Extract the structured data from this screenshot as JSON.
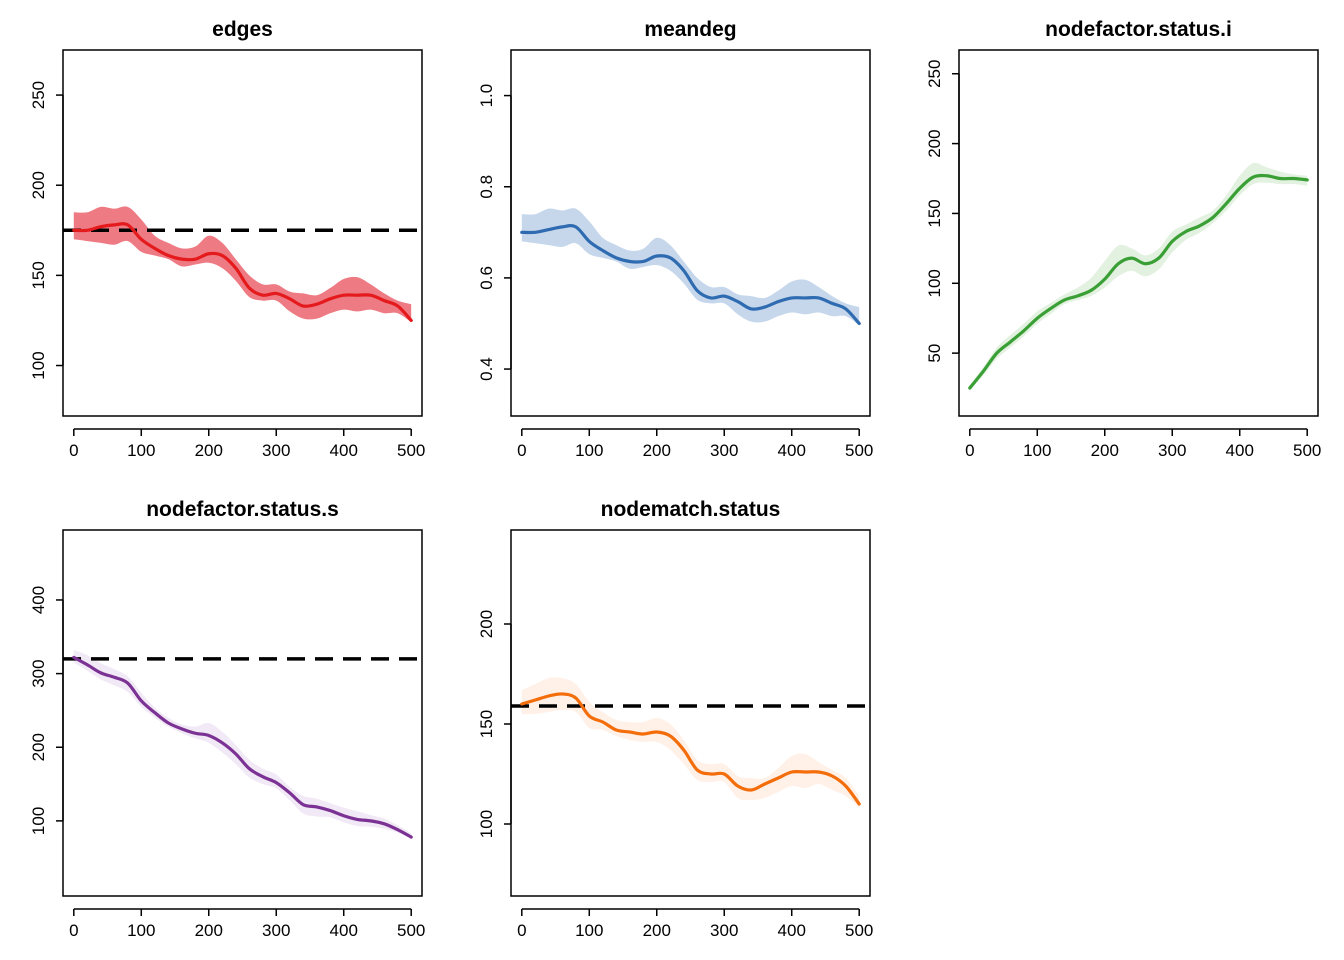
{
  "chart_data": [
    {
      "type": "line",
      "title": "edges",
      "xlabel": "",
      "ylabel": "",
      "xlim": [
        -16,
        516
      ],
      "ylim": [
        72,
        275
      ],
      "xticks": [
        0,
        100,
        200,
        300,
        400,
        500
      ],
      "yticks": [
        100,
        150,
        200,
        250
      ],
      "target": 175,
      "color": "#E41A1C",
      "band_color": "#EE7A83",
      "band_opacity": 1.0,
      "series": [
        {
          "x": [
            0,
            20,
            40,
            60,
            80,
            100,
            120,
            140,
            160,
            180,
            200,
            220,
            240,
            260,
            280,
            300,
            320,
            340,
            360,
            380,
            400,
            420,
            440,
            460,
            480,
            500
          ],
          "y": [
            175,
            175,
            177,
            178,
            178,
            170,
            165,
            161,
            159,
            159,
            162,
            161,
            154,
            143,
            139,
            140,
            137,
            133,
            134,
            137,
            139,
            139,
            139,
            136,
            133,
            125
          ],
          "lower": [
            170,
            169,
            168,
            167,
            169,
            163,
            161,
            159,
            155,
            156,
            157,
            154,
            147,
            138,
            136,
            136,
            130,
            126,
            126,
            129,
            131,
            130,
            131,
            129,
            129,
            124
          ],
          "upper": [
            185,
            185,
            188,
            187,
            188,
            181,
            172,
            168,
            165,
            166,
            172,
            168,
            159,
            150,
            145,
            145,
            141,
            140,
            139,
            143,
            148,
            149,
            145,
            140,
            136,
            134
          ]
        }
      ]
    },
    {
      "type": "line",
      "title": "meandeg",
      "xlabel": "",
      "ylabel": "",
      "xlim": [
        -16,
        516
      ],
      "ylim": [
        0.297,
        1.1
      ],
      "xticks": [
        0,
        100,
        200,
        300,
        400,
        500
      ],
      "yticks": [
        0.4,
        0.6,
        0.8,
        1.0
      ],
      "ytick_labels": [
        "0.4",
        "0.6",
        "0.8",
        "1.0"
      ],
      "target": null,
      "color": "#2E6BB0",
      "band_color": "#C6D7EC",
      "band_opacity": 1.0,
      "series": [
        {
          "x": [
            0,
            20,
            40,
            60,
            80,
            100,
            120,
            140,
            160,
            180,
            200,
            220,
            240,
            260,
            280,
            300,
            320,
            340,
            360,
            380,
            400,
            420,
            440,
            460,
            480,
            500
          ],
          "y": [
            0.7,
            0.7,
            0.706,
            0.712,
            0.712,
            0.68,
            0.66,
            0.644,
            0.636,
            0.636,
            0.648,
            0.644,
            0.616,
            0.572,
            0.556,
            0.56,
            0.548,
            0.532,
            0.536,
            0.548,
            0.556,
            0.556,
            0.556,
            0.544,
            0.532,
            0.5
          ],
          "lower": [
            0.68,
            0.676,
            0.672,
            0.668,
            0.676,
            0.652,
            0.644,
            0.636,
            0.62,
            0.624,
            0.628,
            0.616,
            0.588,
            0.552,
            0.544,
            0.544,
            0.52,
            0.504,
            0.504,
            0.516,
            0.524,
            0.52,
            0.524,
            0.516,
            0.516,
            0.496
          ],
          "upper": [
            0.74,
            0.74,
            0.752,
            0.748,
            0.752,
            0.724,
            0.688,
            0.672,
            0.66,
            0.664,
            0.688,
            0.672,
            0.636,
            0.6,
            0.58,
            0.58,
            0.564,
            0.56,
            0.556,
            0.572,
            0.592,
            0.596,
            0.58,
            0.56,
            0.544,
            0.536
          ]
        }
      ]
    },
    {
      "type": "line",
      "title": "nodefactor.status.i",
      "xlabel": "",
      "ylabel": "",
      "xlim": [
        -16,
        516
      ],
      "ylim": [
        5,
        267
      ],
      "xticks": [
        0,
        100,
        200,
        300,
        400,
        500
      ],
      "yticks": [
        50,
        100,
        150,
        200,
        250
      ],
      "target": null,
      "color": "#3A9F35",
      "band_color": "#E3F1E0",
      "band_opacity": 1.0,
      "series": [
        {
          "x": [
            0,
            20,
            40,
            60,
            80,
            100,
            120,
            140,
            160,
            180,
            200,
            220,
            240,
            260,
            280,
            300,
            320,
            340,
            360,
            380,
            400,
            420,
            440,
            460,
            480,
            500
          ],
          "y": [
            25,
            37,
            50,
            58,
            66,
            75,
            82,
            88,
            91,
            95,
            103,
            114,
            118,
            114,
            118,
            130,
            137,
            141,
            147,
            157,
            168,
            176,
            177,
            175,
            175,
            174
          ],
          "lower": [
            24,
            34,
            46,
            54,
            62,
            71,
            78,
            85,
            88,
            91,
            97,
            105,
            109,
            105,
            110,
            122,
            131,
            136,
            143,
            152,
            163,
            171,
            172,
            171,
            171,
            170
          ],
          "upper": [
            27,
            40,
            54,
            63,
            71,
            80,
            86,
            92,
            97,
            104,
            116,
            127,
            125,
            120,
            125,
            137,
            142,
            147,
            152,
            163,
            177,
            186,
            183,
            180,
            178,
            177
          ]
        }
      ]
    },
    {
      "type": "line",
      "title": "nodefactor.status.s",
      "xlabel": "",
      "ylabel": "",
      "xlim": [
        -16,
        516
      ],
      "ylim": [
        -2,
        495
      ],
      "xticks": [
        0,
        100,
        200,
        300,
        400,
        500
      ],
      "yticks": [
        100,
        200,
        300,
        400
      ],
      "target": 320,
      "color": "#7B3294",
      "band_color": "#F1E9F5",
      "band_opacity": 1.0,
      "series": [
        {
          "x": [
            0,
            20,
            40,
            60,
            80,
            100,
            120,
            140,
            160,
            180,
            200,
            220,
            240,
            260,
            280,
            300,
            320,
            340,
            360,
            380,
            400,
            420,
            440,
            460,
            480,
            500
          ],
          "y": [
            322,
            312,
            301,
            295,
            287,
            263,
            247,
            233,
            225,
            219,
            216,
            206,
            191,
            171,
            160,
            152,
            138,
            122,
            119,
            114,
            107,
            102,
            100,
            96,
            88,
            78
          ],
          "lower": [
            315,
            304,
            292,
            284,
            275,
            255,
            240,
            228,
            219,
            212,
            206,
            193,
            177,
            159,
            150,
            144,
            128,
            110,
            106,
            105,
            98,
            93,
            92,
            89,
            84,
            76
          ],
          "upper": [
            332,
            325,
            314,
            306,
            296,
            274,
            254,
            240,
            231,
            228,
            233,
            221,
            203,
            183,
            171,
            163,
            146,
            134,
            130,
            124,
            118,
            113,
            108,
            103,
            94,
            83
          ]
        }
      ]
    },
    {
      "type": "line",
      "title": "nodematch.status",
      "xlabel": "",
      "ylabel": "",
      "xlim": [
        -16,
        516
      ],
      "ylim": [
        64,
        247
      ],
      "xticks": [
        0,
        100,
        200,
        300,
        400,
        500
      ],
      "yticks": [
        100,
        150,
        200
      ],
      "target": 159,
      "color": "#F46D0B",
      "band_color": "#FFF1E8",
      "band_opacity": 1.0,
      "series": [
        {
          "x": [
            0,
            20,
            40,
            60,
            80,
            100,
            120,
            140,
            160,
            180,
            200,
            220,
            240,
            260,
            280,
            300,
            320,
            340,
            360,
            380,
            400,
            420,
            440,
            460,
            480,
            500
          ],
          "y": [
            160,
            162,
            164,
            165,
            163,
            154,
            151,
            147,
            146,
            145,
            146,
            144,
            137,
            127,
            125,
            125,
            119,
            117,
            120,
            123,
            126,
            126,
            126,
            124,
            119,
            110
          ],
          "lower": [
            155,
            155,
            156,
            157,
            156,
            148,
            147,
            144,
            142,
            141,
            141,
            137,
            130,
            122,
            121,
            121,
            113,
            112,
            113,
            116,
            119,
            118,
            120,
            117,
            114,
            108
          ],
          "upper": [
            167,
            170,
            173,
            173,
            170,
            161,
            156,
            152,
            151,
            151,
            153,
            150,
            142,
            132,
            130,
            130,
            124,
            123,
            123,
            128,
            134,
            135,
            131,
            127,
            123,
            114
          ]
        }
      ]
    }
  ]
}
